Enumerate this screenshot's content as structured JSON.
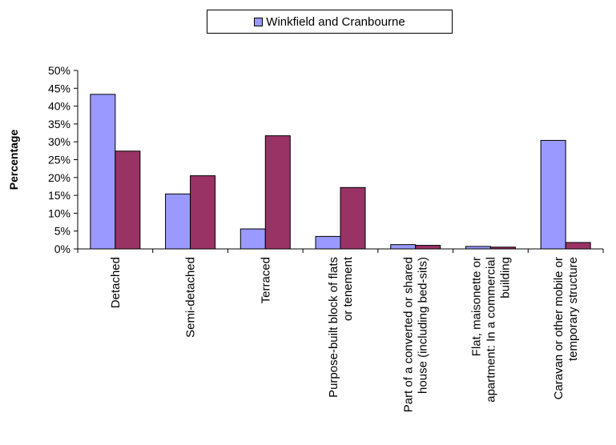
{
  "chart_data": {
    "type": "bar",
    "categories": [
      [
        "Detached"
      ],
      [
        "Semi-detached"
      ],
      [
        "Terraced"
      ],
      [
        "Purpose-built block of flats",
        "or tenement"
      ],
      [
        "Part of a converted or shared",
        "house (including bed-sits)"
      ],
      [
        "Flat, maisonette or",
        "apartment: In a commercial",
        "building"
      ],
      [
        "Caravan or other mobile or",
        "temporary structure"
      ]
    ],
    "series": [
      {
        "name": "Winkfield and Cranbourne",
        "color": "#9999ff",
        "values": [
          43.3,
          15.4,
          5.6,
          3.5,
          1.2,
          0.7,
          30.4
        ]
      },
      {
        "name": "",
        "color": "#993366",
        "values": [
          27.4,
          20.5,
          31.7,
          17.2,
          1.0,
          0.5,
          1.8
        ]
      }
    ],
    "ylabel": "Percentage",
    "xlabel": "",
    "ylim": [
      0,
      50
    ],
    "yticks": [
      "0%",
      "5%",
      "10%",
      "15%",
      "20%",
      "25%",
      "30%",
      "35%",
      "40%",
      "45%",
      "50%"
    ],
    "legend_position": "top",
    "grid": false
  }
}
